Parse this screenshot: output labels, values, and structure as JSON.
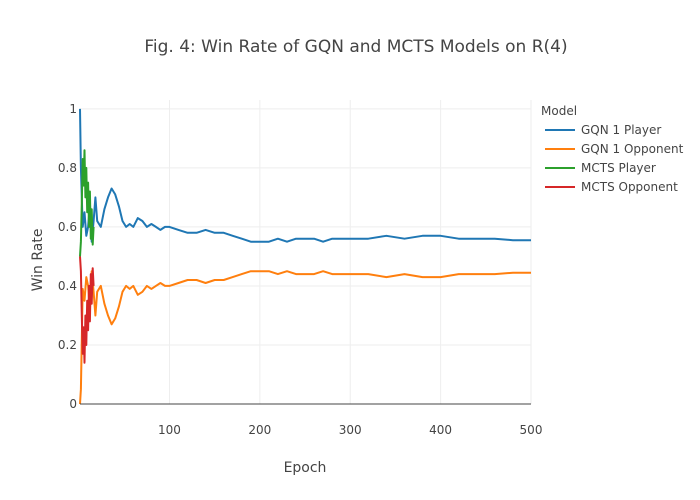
{
  "chart_data": {
    "type": "line",
    "title": "Fig. 4: Win Rate of GQN and MCTS Models on R(4)",
    "xlabel": "Epoch",
    "ylabel": "Win Rate",
    "xlim": [
      1,
      500
    ],
    "ylim": [
      0,
      1.03
    ],
    "x_ticks": [
      100,
      200,
      300,
      400,
      500
    ],
    "y_ticks": [
      0,
      0.2,
      0.4,
      0.6,
      0.8,
      1
    ],
    "x_tick_labels": [
      "100",
      "200",
      "300",
      "400",
      "500"
    ],
    "y_tick_labels": [
      "0",
      "0.2",
      "0.4",
      "0.6",
      "0.8",
      "1"
    ],
    "grid": true,
    "legend": {
      "title": "Model",
      "placement": "top-right"
    },
    "series": [
      {
        "name": "GQN 1 Player",
        "color": "#1f77b4",
        "x": [
          1,
          2,
          4,
          6,
          8,
          10,
          12,
          14,
          16,
          18,
          20,
          24,
          28,
          32,
          36,
          40,
          44,
          48,
          52,
          56,
          60,
          65,
          70,
          75,
          80,
          85,
          90,
          95,
          100,
          110,
          120,
          130,
          140,
          150,
          160,
          170,
          180,
          190,
          200,
          210,
          220,
          230,
          240,
          250,
          260,
          270,
          280,
          290,
          300,
          320,
          340,
          360,
          380,
          400,
          420,
          440,
          460,
          480,
          500
        ],
        "y": [
          1.0,
          0.8,
          0.6,
          0.65,
          0.57,
          0.6,
          0.68,
          0.55,
          0.62,
          0.7,
          0.62,
          0.6,
          0.66,
          0.7,
          0.73,
          0.71,
          0.67,
          0.62,
          0.6,
          0.61,
          0.6,
          0.63,
          0.62,
          0.6,
          0.61,
          0.6,
          0.59,
          0.6,
          0.6,
          0.59,
          0.58,
          0.58,
          0.59,
          0.58,
          0.58,
          0.57,
          0.56,
          0.55,
          0.55,
          0.55,
          0.56,
          0.55,
          0.56,
          0.56,
          0.56,
          0.55,
          0.56,
          0.56,
          0.56,
          0.56,
          0.57,
          0.56,
          0.57,
          0.57,
          0.56,
          0.56,
          0.56,
          0.555,
          0.555
        ]
      },
      {
        "name": "GQN 1 Opponent",
        "color": "#ff7f0e",
        "x": [
          1,
          2,
          4,
          6,
          8,
          10,
          12,
          14,
          16,
          18,
          20,
          24,
          28,
          32,
          36,
          40,
          44,
          48,
          52,
          56,
          60,
          65,
          70,
          75,
          80,
          85,
          90,
          95,
          100,
          110,
          120,
          130,
          140,
          150,
          160,
          170,
          180,
          190,
          200,
          210,
          220,
          230,
          240,
          250,
          260,
          270,
          280,
          290,
          300,
          320,
          340,
          360,
          380,
          400,
          420,
          440,
          460,
          480,
          500
        ],
        "y": [
          0.0,
          0.05,
          0.39,
          0.35,
          0.43,
          0.4,
          0.32,
          0.45,
          0.38,
          0.3,
          0.38,
          0.4,
          0.34,
          0.3,
          0.27,
          0.29,
          0.33,
          0.38,
          0.4,
          0.39,
          0.4,
          0.37,
          0.38,
          0.4,
          0.39,
          0.4,
          0.41,
          0.4,
          0.4,
          0.41,
          0.42,
          0.42,
          0.41,
          0.42,
          0.42,
          0.43,
          0.44,
          0.45,
          0.45,
          0.45,
          0.44,
          0.45,
          0.44,
          0.44,
          0.44,
          0.45,
          0.44,
          0.44,
          0.44,
          0.44,
          0.43,
          0.44,
          0.43,
          0.43,
          0.44,
          0.44,
          0.44,
          0.445,
          0.445
        ]
      },
      {
        "name": "MCTS Player",
        "color": "#2ca02c",
        "x": [
          1,
          2,
          3,
          4,
          5,
          6,
          7,
          8,
          9,
          10,
          11,
          12,
          13,
          14,
          15,
          16
        ],
        "y": [
          0.5,
          0.55,
          0.68,
          0.83,
          0.74,
          0.86,
          0.7,
          0.8,
          0.65,
          0.75,
          0.6,
          0.72,
          0.56,
          0.66,
          0.54,
          0.6
        ]
      },
      {
        "name": "MCTS Opponent",
        "color": "#d62728",
        "x": [
          1,
          2,
          3,
          4,
          5,
          6,
          7,
          8,
          9,
          10,
          11,
          12,
          13,
          14,
          15,
          16
        ],
        "y": [
          0.5,
          0.45,
          0.3,
          0.17,
          0.26,
          0.14,
          0.3,
          0.2,
          0.35,
          0.25,
          0.4,
          0.28,
          0.44,
          0.34,
          0.46,
          0.4
        ]
      }
    ]
  }
}
